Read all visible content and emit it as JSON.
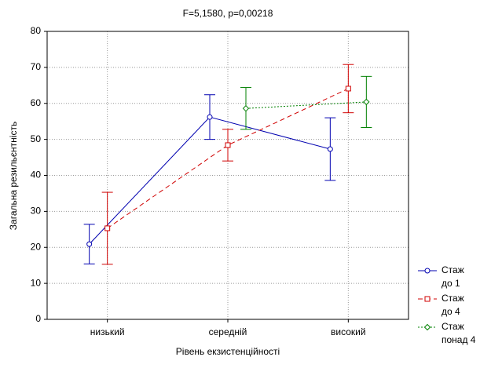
{
  "chart_data": {
    "type": "line",
    "title": "F=5,1580, p=0,00218",
    "xlabel": "Рівень екзистенційності",
    "ylabel": "Загальна резильєнтність",
    "categories": [
      "низький",
      "середній",
      "високий"
    ],
    "series": [
      {
        "name": "Стаж до 1",
        "color": "#0000b0",
        "dash": "solid",
        "values": [
          20.9,
          56.2,
          47.3
        ],
        "errors": [
          5.5,
          6.2,
          8.7
        ]
      },
      {
        "name": "Стаж до 4",
        "color": "#d00000",
        "dash": "dashed",
        "values": [
          25.3,
          48.4,
          64.1
        ],
        "errors": [
          10.0,
          4.4,
          6.7
        ]
      },
      {
        "name": "Стаж понад 4",
        "color": "#008000",
        "dash": "dotted",
        "values": [
          null,
          58.6,
          60.4
        ],
        "errors": [
          null,
          5.8,
          7.1
        ]
      }
    ],
    "ylim": [
      0,
      80
    ],
    "yticks": [
      0,
      10,
      20,
      30,
      40,
      50,
      60,
      70,
      80
    ],
    "grid": true,
    "legend": "lower right"
  }
}
